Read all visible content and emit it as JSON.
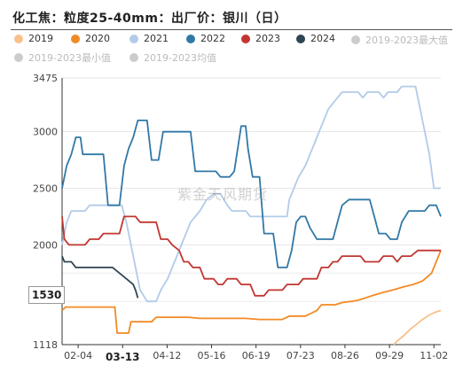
{
  "title": "化工焦：粒度25-40mm：出厂价：银川（日）",
  "watermark": "紫金天风期货",
  "chart_data": {
    "type": "line",
    "title": "化工焦：粒度25-40mm：出厂价：银川（日）",
    "x_ticks": [
      "02-04",
      "03-13",
      "04-12",
      "05-16",
      "06-19",
      "07-23",
      "08-26",
      "09-29",
      "11-02"
    ],
    "highlight_x_tick": "03-13",
    "y_ticks": [
      3475,
      3000,
      2500,
      2000,
      1118
    ],
    "highlight_y_value": "1530",
    "ylim": [
      1118,
      3475
    ],
    "x_range_days": [
      0,
      330
    ],
    "grid": true,
    "legend_position": "top",
    "series": [
      {
        "name": "2019",
        "color": "#f9c08a",
        "visible": true,
        "points": [
          [
            289,
            1118
          ],
          [
            292,
            1150
          ],
          [
            298,
            1200
          ],
          [
            304,
            1260
          ],
          [
            309,
            1300
          ],
          [
            314,
            1340
          ],
          [
            320,
            1380
          ],
          [
            324,
            1400
          ],
          [
            330,
            1420
          ]
        ]
      },
      {
        "name": "2020",
        "color": "#f28a24",
        "visible": true,
        "points": [
          [
            0,
            1420
          ],
          [
            3,
            1450
          ],
          [
            46,
            1450
          ],
          [
            48,
            1220
          ],
          [
            58,
            1220
          ],
          [
            60,
            1320
          ],
          [
            78,
            1320
          ],
          [
            82,
            1360
          ],
          [
            110,
            1360
          ],
          [
            120,
            1350
          ],
          [
            160,
            1350
          ],
          [
            172,
            1340
          ],
          [
            192,
            1340
          ],
          [
            198,
            1370
          ],
          [
            212,
            1370
          ],
          [
            218,
            1400
          ],
          [
            222,
            1420
          ],
          [
            226,
            1470
          ],
          [
            238,
            1470
          ],
          [
            244,
            1490
          ],
          [
            252,
            1500
          ],
          [
            258,
            1510
          ],
          [
            264,
            1530
          ],
          [
            270,
            1550
          ],
          [
            280,
            1580
          ],
          [
            288,
            1600
          ],
          [
            298,
            1630
          ],
          [
            306,
            1650
          ],
          [
            314,
            1680
          ],
          [
            322,
            1750
          ],
          [
            326,
            1850
          ],
          [
            330,
            1950
          ]
        ]
      },
      {
        "name": "2021",
        "color": "#b2cbe8",
        "visible": true,
        "points": [
          [
            0,
            2000
          ],
          [
            4,
            2200
          ],
          [
            8,
            2300
          ],
          [
            20,
            2300
          ],
          [
            24,
            2350
          ],
          [
            52,
            2350
          ],
          [
            56,
            2200
          ],
          [
            62,
            1900
          ],
          [
            68,
            1600
          ],
          [
            74,
            1500
          ],
          [
            82,
            1500
          ],
          [
            86,
            1600
          ],
          [
            92,
            1700
          ],
          [
            96,
            1800
          ],
          [
            100,
            1900
          ],
          [
            104,
            2000
          ],
          [
            108,
            2100
          ],
          [
            112,
            2200
          ],
          [
            116,
            2250
          ],
          [
            120,
            2300
          ],
          [
            126,
            2400
          ],
          [
            132,
            2450
          ],
          [
            138,
            2450
          ],
          [
            144,
            2350
          ],
          [
            148,
            2300
          ],
          [
            160,
            2300
          ],
          [
            164,
            2250
          ],
          [
            196,
            2250
          ],
          [
            198,
            2400
          ],
          [
            206,
            2600
          ],
          [
            212,
            2700
          ],
          [
            216,
            2800
          ],
          [
            220,
            2900
          ],
          [
            224,
            3000
          ],
          [
            228,
            3100
          ],
          [
            232,
            3200
          ],
          [
            240,
            3300
          ],
          [
            244,
            3350
          ],
          [
            258,
            3350
          ],
          [
            262,
            3300
          ],
          [
            266,
            3350
          ],
          [
            276,
            3350
          ],
          [
            280,
            3300
          ],
          [
            284,
            3350
          ],
          [
            292,
            3350
          ],
          [
            296,
            3400
          ],
          [
            308,
            3400
          ],
          [
            312,
            3200
          ],
          [
            316,
            3000
          ],
          [
            320,
            2800
          ],
          [
            324,
            2500
          ],
          [
            330,
            2500
          ]
        ]
      },
      {
        "name": "2022",
        "color": "#3178a7",
        "visible": true,
        "points": [
          [
            0,
            2500
          ],
          [
            4,
            2700
          ],
          [
            8,
            2800
          ],
          [
            12,
            2950
          ],
          [
            16,
            2950
          ],
          [
            18,
            2800
          ],
          [
            36,
            2800
          ],
          [
            40,
            2350
          ],
          [
            50,
            2350
          ],
          [
            54,
            2700
          ],
          [
            58,
            2850
          ],
          [
            62,
            2950
          ],
          [
            66,
            3100
          ],
          [
            74,
            3100
          ],
          [
            78,
            2750
          ],
          [
            84,
            2750
          ],
          [
            88,
            3000
          ],
          [
            112,
            3000
          ],
          [
            116,
            2650
          ],
          [
            134,
            2650
          ],
          [
            138,
            2600
          ],
          [
            146,
            2600
          ],
          [
            150,
            2650
          ],
          [
            156,
            3050
          ],
          [
            160,
            3050
          ],
          [
            162,
            2850
          ],
          [
            166,
            2600
          ],
          [
            172,
            2600
          ],
          [
            176,
            2100
          ],
          [
            184,
            2100
          ],
          [
            188,
            1800
          ],
          [
            196,
            1800
          ],
          [
            200,
            1950
          ],
          [
            204,
            2200
          ],
          [
            208,
            2250
          ],
          [
            212,
            2250
          ],
          [
            216,
            2150
          ],
          [
            222,
            2050
          ],
          [
            230,
            2050
          ],
          [
            236,
            2050
          ],
          [
            240,
            2200
          ],
          [
            244,
            2350
          ],
          [
            250,
            2400
          ],
          [
            268,
            2400
          ],
          [
            272,
            2250
          ],
          [
            276,
            2100
          ],
          [
            282,
            2100
          ],
          [
            286,
            2050
          ],
          [
            292,
            2050
          ],
          [
            296,
            2200
          ],
          [
            302,
            2300
          ],
          [
            316,
            2300
          ],
          [
            320,
            2350
          ],
          [
            326,
            2350
          ],
          [
            330,
            2250
          ]
        ]
      },
      {
        "name": "2023",
        "color": "#c23531",
        "visible": true,
        "points": [
          [
            0,
            2250
          ],
          [
            2,
            2050
          ],
          [
            6,
            2000
          ],
          [
            20,
            2000
          ],
          [
            24,
            2050
          ],
          [
            32,
            2050
          ],
          [
            36,
            2100
          ],
          [
            50,
            2100
          ],
          [
            54,
            2250
          ],
          [
            64,
            2250
          ],
          [
            68,
            2200
          ],
          [
            82,
            2200
          ],
          [
            86,
            2050
          ],
          [
            92,
            2050
          ],
          [
            96,
            2000
          ],
          [
            102,
            1950
          ],
          [
            106,
            1850
          ],
          [
            110,
            1850
          ],
          [
            114,
            1800
          ],
          [
            120,
            1800
          ],
          [
            124,
            1700
          ],
          [
            132,
            1700
          ],
          [
            136,
            1650
          ],
          [
            140,
            1650
          ],
          [
            144,
            1700
          ],
          [
            152,
            1700
          ],
          [
            156,
            1650
          ],
          [
            164,
            1650
          ],
          [
            168,
            1550
          ],
          [
            176,
            1550
          ],
          [
            180,
            1600
          ],
          [
            192,
            1600
          ],
          [
            196,
            1650
          ],
          [
            206,
            1650
          ],
          [
            210,
            1700
          ],
          [
            222,
            1700
          ],
          [
            226,
            1800
          ],
          [
            232,
            1800
          ],
          [
            236,
            1850
          ],
          [
            240,
            1850
          ],
          [
            244,
            1900
          ],
          [
            260,
            1900
          ],
          [
            264,
            1850
          ],
          [
            276,
            1850
          ],
          [
            280,
            1900
          ],
          [
            288,
            1900
          ],
          [
            292,
            1850
          ],
          [
            296,
            1900
          ],
          [
            304,
            1900
          ],
          [
            310,
            1950
          ],
          [
            326,
            1950
          ],
          [
            330,
            1950
          ]
        ]
      },
      {
        "name": "2024",
        "color": "#2f4554",
        "visible": true,
        "points": [
          [
            0,
            1900
          ],
          [
            2,
            1850
          ],
          [
            8,
            1850
          ],
          [
            12,
            1800
          ],
          [
            44,
            1800
          ],
          [
            50,
            1750
          ],
          [
            56,
            1700
          ],
          [
            62,
            1650
          ],
          [
            64,
            1600
          ],
          [
            66,
            1530
          ]
        ]
      },
      {
        "name": "2019-2023最大值",
        "color": "#cccccc",
        "visible": false,
        "points": []
      },
      {
        "name": "2019-2023最小值",
        "color": "#cccccc",
        "visible": false,
        "points": []
      },
      {
        "name": "2019-2023均值",
        "color": "#cccccc",
        "visible": false,
        "points": []
      }
    ]
  }
}
